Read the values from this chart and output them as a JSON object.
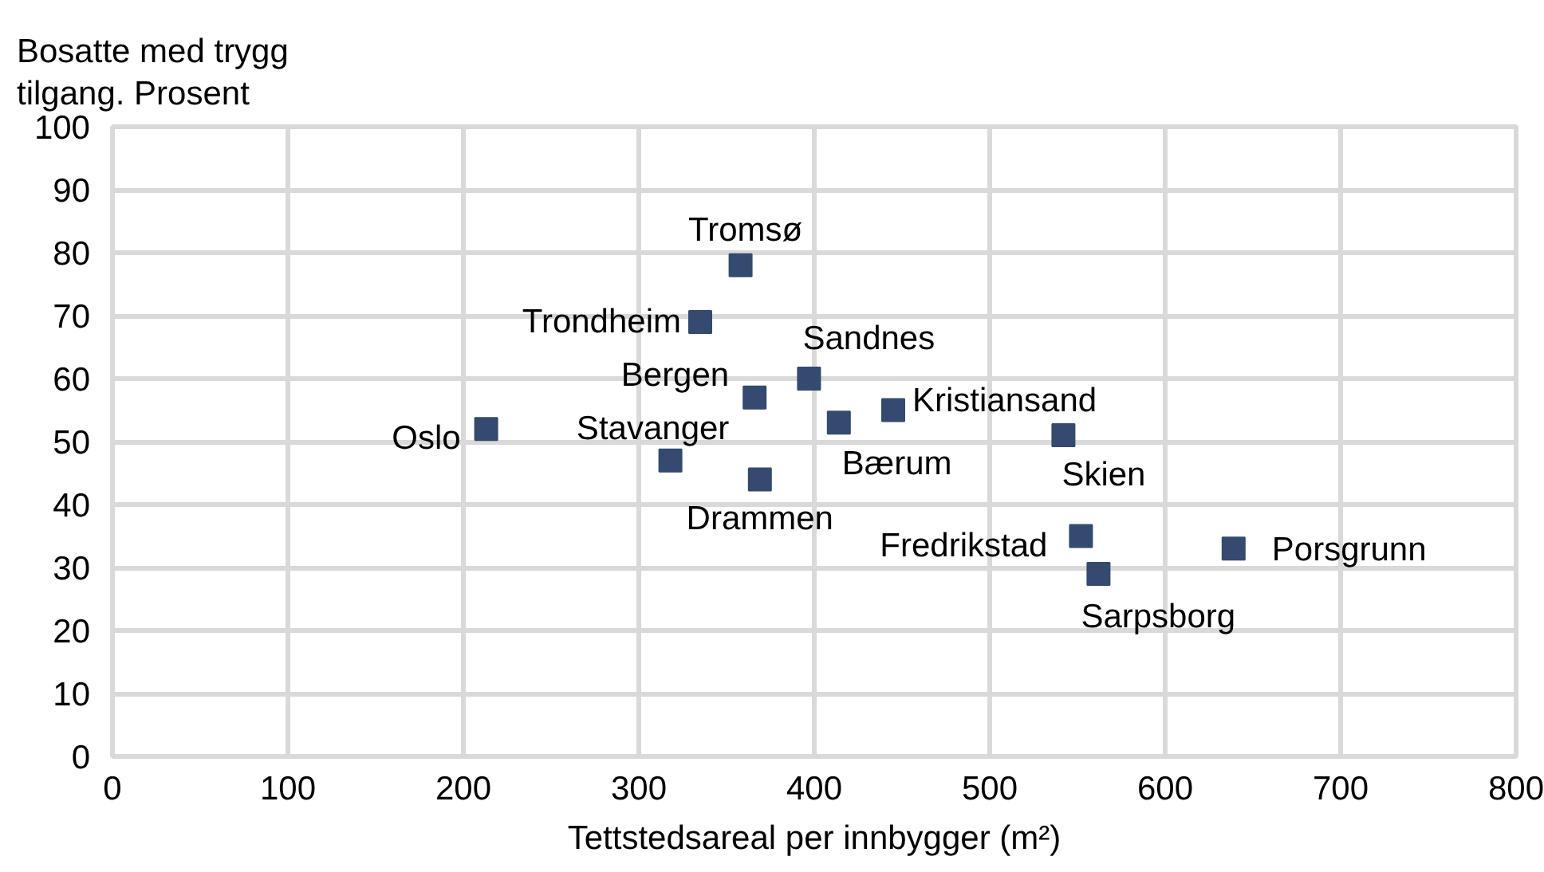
{
  "chart_data": {
    "type": "scatter",
    "xlabel": "Tettstedsareal per innbygger (m²)",
    "ylabel": "Bosatte med trygg tilgang. Prosent",
    "x": [
      213,
      318,
      335,
      358,
      366,
      369,
      397,
      414,
      445,
      542,
      552,
      562,
      639
    ],
    "series": [
      {
        "color": "#344a6e",
        "values": [
          52,
          47,
          69,
          78,
          57,
          44,
          60,
          53,
          55,
          51,
          35,
          29,
          33
        ]
      }
    ],
    "xlim": [
      0,
      800
    ],
    "xticks": [
      0,
      100,
      200,
      300,
      400,
      500,
      600,
      700,
      800
    ],
    "ylim": [
      0,
      100
    ],
    "yticks": [
      0,
      10,
      20,
      30,
      40,
      50,
      60,
      70,
      80,
      90,
      100
    ],
    "grid": true,
    "marker": "square",
    "annotations": [
      {
        "text": "Oslo",
        "x": 213,
        "y": 52
      },
      {
        "text": "Stavanger",
        "x": 318,
        "y": 47
      },
      {
        "text": "Trondheim",
        "x": 335,
        "y": 69
      },
      {
        "text": "Tromsø",
        "x": 358,
        "y": 78
      },
      {
        "text": "Bergen",
        "x": 366,
        "y": 57
      },
      {
        "text": "Drammen",
        "x": 369,
        "y": 44
      },
      {
        "text": "Sandnes",
        "x": 397,
        "y": 60
      },
      {
        "text": "Bærum",
        "x": 414,
        "y": 53
      },
      {
        "text": "Kristiansand",
        "x": 445,
        "y": 55
      },
      {
        "text": "Skien",
        "x": 542,
        "y": 51
      },
      {
        "text": "Fredrikstad",
        "x": 552,
        "y": 35
      },
      {
        "text": "Sarpsborg",
        "x": 562,
        "y": 29
      },
      {
        "text": "Porsgrunn",
        "x": 639,
        "y": 33
      }
    ]
  }
}
